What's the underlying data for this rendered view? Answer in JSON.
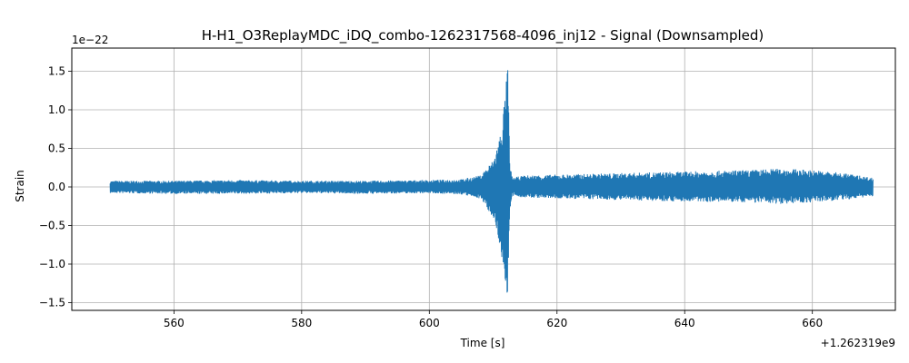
{
  "chart_data": {
    "type": "line",
    "title": "H-H1_O3ReplayMDC_iDQ_combo-1262317568-4096_inj12 - Signal (Downsampled)",
    "xlabel": "Time [s]",
    "ylabel": "Strain",
    "x_offset_label": "+1.262319e9",
    "y_scale_label": "1e−22",
    "xlim": [
      544,
      673
    ],
    "ylim": [
      -1.6,
      1.8
    ],
    "x_ticks": [
      560,
      580,
      600,
      620,
      640,
      660
    ],
    "y_ticks": [
      -1.5,
      -1.0,
      -0.5,
      0.0,
      0.5,
      1.0,
      1.5
    ],
    "x_tick_labels": [
      "560",
      "580",
      "600",
      "620",
      "640",
      "660"
    ],
    "y_tick_labels": [
      "−1.5",
      "−1.0",
      "−0.5",
      "0.0",
      "0.5",
      "1.0",
      "1.5"
    ],
    "grid": true,
    "series_color": "#1f77b4",
    "series": [
      {
        "x": [
          550,
          560,
          570,
          580,
          590,
          600,
          605,
          608,
          610,
          611,
          611.5,
          612,
          612.3,
          612.6,
          613,
          615,
          620,
          630,
          640,
          650,
          655,
          660,
          665,
          669.5
        ],
        "max": [
          0.08,
          0.08,
          0.09,
          0.08,
          0.08,
          0.09,
          0.1,
          0.15,
          0.35,
          0.65,
          0.95,
          1.3,
          1.66,
          0.3,
          0.12,
          0.15,
          0.16,
          0.18,
          0.2,
          0.22,
          0.24,
          0.22,
          0.18,
          0.12
        ],
        "min": [
          -0.08,
          -0.09,
          -0.09,
          -0.08,
          -0.09,
          -0.08,
          -0.1,
          -0.15,
          -0.4,
          -0.75,
          -1.05,
          -1.3,
          -1.46,
          -0.35,
          -0.12,
          -0.14,
          -0.15,
          -0.17,
          -0.19,
          -0.2,
          -0.22,
          -0.2,
          -0.17,
          -0.12
        ]
      }
    ]
  }
}
